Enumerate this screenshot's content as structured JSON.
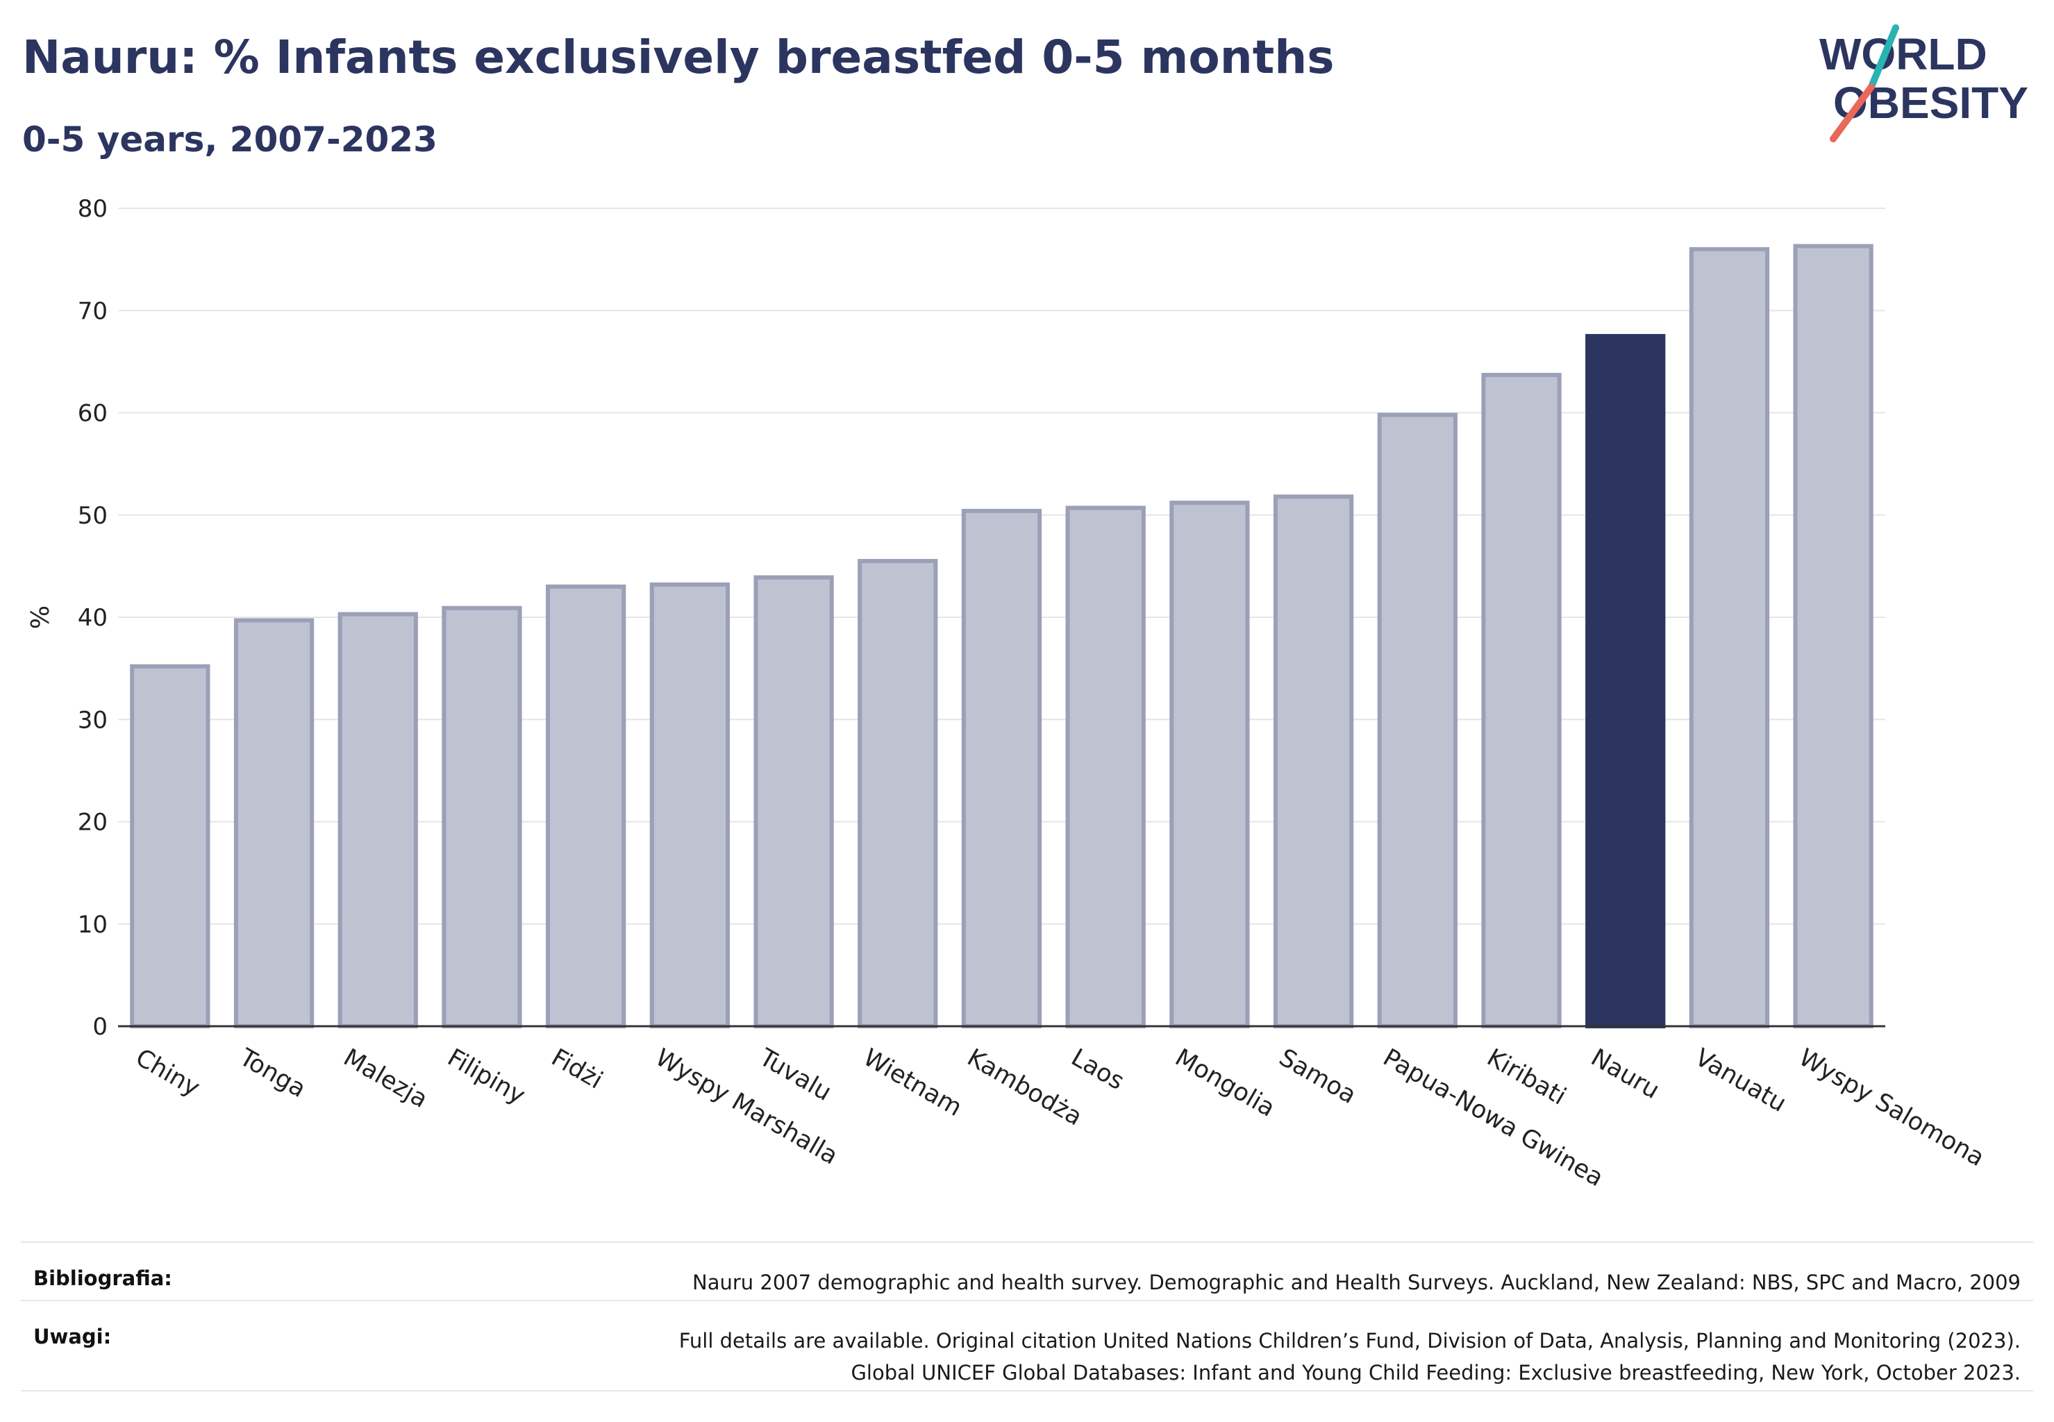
{
  "header": {
    "title": "Nauru: % Infants exclusively breastfed 0-5 months",
    "subtitle": "0-5 years, 2007-2023"
  },
  "logo": {
    "line1": "WORLD",
    "line2": "OBESITY",
    "accent_teal": "#2ab3b1",
    "accent_red": "#e8685a",
    "text_color": "#2b3560"
  },
  "chart_data": {
    "type": "bar",
    "ylabel": "%",
    "ylim": [
      0,
      80
    ],
    "yticks": [
      0,
      10,
      20,
      30,
      40,
      50,
      60,
      70,
      80
    ],
    "grid": true,
    "categories": [
      "Chiny",
      "Tonga",
      "Malezja",
      "Filipiny",
      "Fidżi",
      "Wyspy Marshalla",
      "Tuvalu",
      "Wietnam",
      "Kambodża",
      "Laos",
      "Mongolia",
      "Samoa",
      "Papua-Nowa Gwinea",
      "Kiribati",
      "Nauru",
      "Vanuatu",
      "Wyspy Salomona"
    ],
    "values": [
      35.2,
      39.7,
      40.3,
      40.9,
      43.0,
      43.2,
      43.9,
      45.5,
      50.4,
      50.7,
      51.2,
      51.8,
      59.8,
      63.7,
      67.5,
      76.0,
      76.3
    ],
    "highlight": "Nauru",
    "colors": {
      "bar": "#bfc2d0",
      "bar_border": "#9ba0b8",
      "highlight": "#2b3560",
      "grid": "#e6e6e6",
      "axis": "#333333"
    }
  },
  "footer": {
    "bibliography_label": "Bibliografia:",
    "bibliography_text": "Nauru 2007 demographic and health survey. Demographic and Health Surveys. Auckland, New Zealand: NBS, SPC and Macro, 2009",
    "notes_label": "Uwagi:",
    "notes_line1": "Full details are available. Original citation United Nations Children’s Fund, Division of Data, Analysis, Planning and Monitoring (2023).",
    "notes_line2": "Global UNICEF Global Databases: Infant and Young Child Feeding: Exclusive breastfeeding, New York, October 2023."
  }
}
